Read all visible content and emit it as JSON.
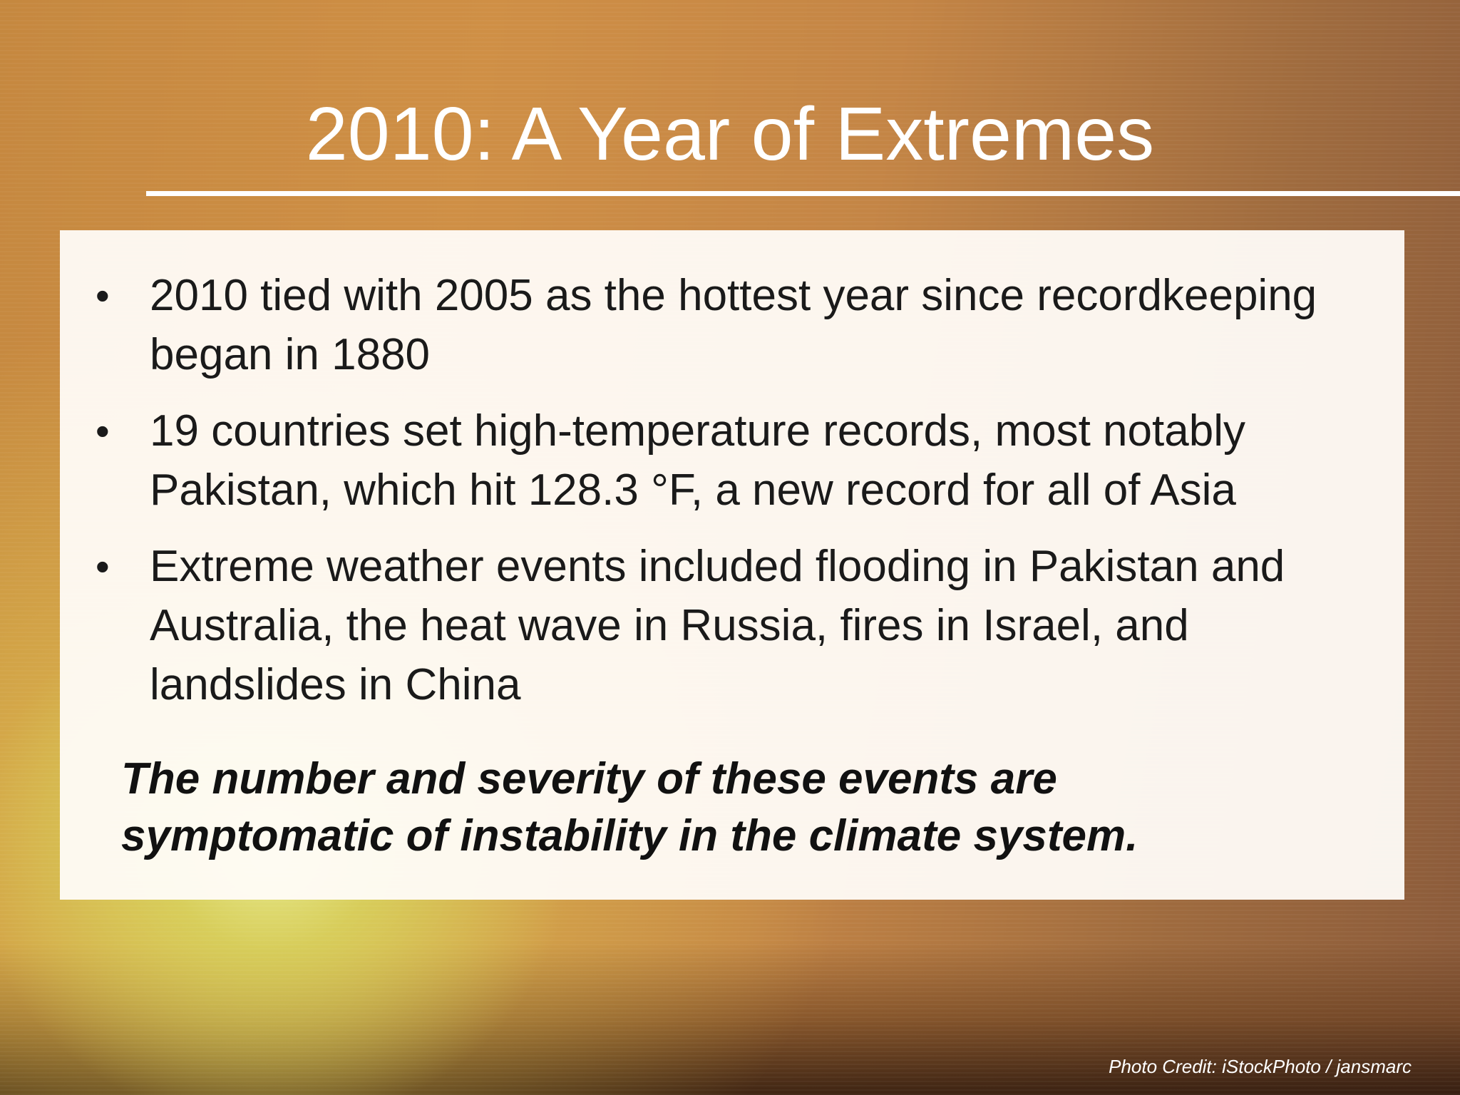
{
  "slide": {
    "title": "2010: A Year of Extremes",
    "bullets": [
      {
        "marker": "•",
        "text": "2010 tied with 2005 as the hottest year since recordkeeping began in 1880"
      },
      {
        "marker": "•",
        "text": "19 countries set high-temperature records, most notably Pakistan, which hit 128.3 °F, a new record for all of Asia"
      },
      {
        "marker": "•",
        "text": "Extreme weather events included flooding in Pakistan and Australia, the heat wave in Russia, fires in Israel, and landslides in China"
      }
    ],
    "conclusion": "The number and severity of these events are symptomatic of instability in the climate system.",
    "photo_credit": "Photo Credit: iStockPhoto / jansmarc"
  }
}
